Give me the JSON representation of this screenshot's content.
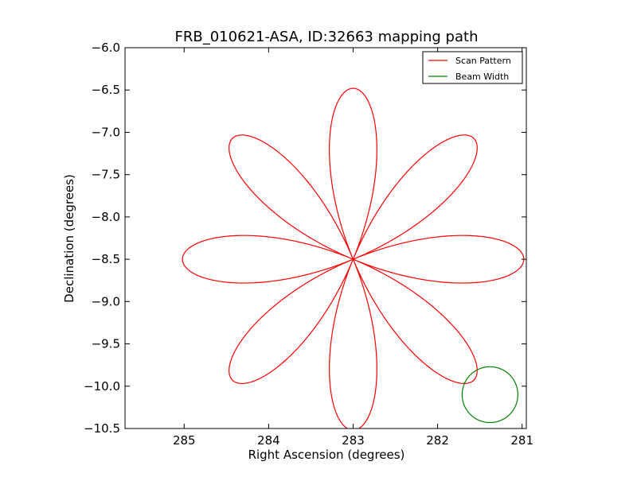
{
  "chart_data": {
    "type": "line",
    "title": "FRB_010621-ASA, ID:32663 mapping path",
    "xlabel": "Right Ascension (degrees)",
    "ylabel": "Declination (degrees)",
    "xlim": [
      285.7,
      280.95
    ],
    "ylim": [
      -10.5,
      -6.0
    ],
    "x_ticks": [
      285,
      284,
      283,
      282,
      281
    ],
    "x_tick_labels": [
      "285",
      "284",
      "283",
      "282",
      "281"
    ],
    "y_ticks": [
      -6.0,
      -6.5,
      -7.0,
      -7.5,
      -8.0,
      -8.5,
      -9.0,
      -9.5,
      -10.0,
      -10.5
    ],
    "y_tick_labels": [
      "−6.0",
      "−6.5",
      "−7.0",
      "−7.5",
      "−8.0",
      "−8.5",
      "−9.0",
      "−9.5",
      "−10.0",
      "−10.5"
    ],
    "legend_position": "top-right",
    "series": [
      {
        "name": "Scan Pattern",
        "color": "#ff0000",
        "shape": "rose",
        "center": [
          283.0,
          -8.5
        ],
        "petals": 8,
        "radius_deg": 2.02
      },
      {
        "name": "Beam Width",
        "color": "#008000",
        "shape": "circle",
        "center": [
          281.38,
          -10.1
        ],
        "radius_deg": 0.33
      }
    ]
  }
}
